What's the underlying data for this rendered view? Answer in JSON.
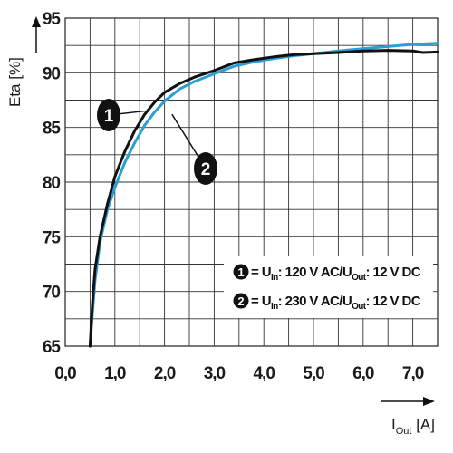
{
  "chart_data": {
    "type": "line",
    "ylabel": "Eta [%]",
    "xlabel": {
      "main": "I",
      "sub": "Out",
      "unit": " [A]"
    },
    "xlim": [
      0,
      7.5
    ],
    "ylim": [
      65,
      95
    ],
    "x_ticks": [
      "0,0",
      "1,0",
      "2,0",
      "3,0",
      "4,0",
      "5,0",
      "6,0",
      "7,0"
    ],
    "y_ticks": [
      "65",
      "70",
      "75",
      "80",
      "85",
      "90",
      "95"
    ],
    "grid": true,
    "legend_placement": "lower-right",
    "series": [
      {
        "id": "1",
        "color": "#111111",
        "points": [
          [
            0.5,
            65
          ],
          [
            0.55,
            69
          ],
          [
            0.6,
            72
          ],
          [
            0.7,
            75
          ],
          [
            0.85,
            78
          ],
          [
            1.0,
            80.5
          ],
          [
            1.2,
            82.8
          ],
          [
            1.4,
            84.7
          ],
          [
            1.6,
            86.2
          ],
          [
            1.8,
            87.3
          ],
          [
            2.0,
            88.2
          ],
          [
            2.3,
            89.0
          ],
          [
            2.6,
            89.6
          ],
          [
            3.0,
            90.2
          ],
          [
            3.4,
            90.9
          ],
          [
            3.8,
            91.2
          ],
          [
            4.2,
            91.45
          ],
          [
            4.6,
            91.65
          ],
          [
            5.0,
            91.75
          ],
          [
            5.5,
            91.85
          ],
          [
            6.0,
            92.0
          ],
          [
            6.5,
            92.05
          ],
          [
            7.0,
            92.0
          ],
          [
            7.2,
            91.85
          ],
          [
            7.5,
            91.9
          ]
        ]
      },
      {
        "id": "2",
        "color": "#2a9fd6",
        "points": [
          [
            0.5,
            65
          ],
          [
            0.55,
            68
          ],
          [
            0.6,
            71
          ],
          [
            0.7,
            74.5
          ],
          [
            0.85,
            77.5
          ],
          [
            1.0,
            79.5
          ],
          [
            1.2,
            81.8
          ],
          [
            1.4,
            83.6
          ],
          [
            1.6,
            85.2
          ],
          [
            1.8,
            86.4
          ],
          [
            2.0,
            87.4
          ],
          [
            2.3,
            88.5
          ],
          [
            2.6,
            89.2
          ],
          [
            3.0,
            89.9
          ],
          [
            3.4,
            90.6
          ],
          [
            3.8,
            91.0
          ],
          [
            4.2,
            91.3
          ],
          [
            4.6,
            91.55
          ],
          [
            5.0,
            91.75
          ],
          [
            5.5,
            92.0
          ],
          [
            6.0,
            92.2
          ],
          [
            6.5,
            92.4
          ],
          [
            7.0,
            92.6
          ],
          [
            7.5,
            92.7
          ]
        ]
      }
    ],
    "legend": [
      {
        "marker": "1",
        "line": [
          "= U",
          "In",
          ": 120 V AC/U",
          "Out",
          ": 12 V DC"
        ]
      },
      {
        "marker": "2",
        "line": [
          "= U",
          "In",
          ": 230 V AC/U",
          "Out",
          ": 12 V DC"
        ]
      }
    ],
    "callouts": [
      {
        "marker": "1",
        "x": 1.6,
        "y": 86.5
      },
      {
        "marker": "2",
        "x": 2.15,
        "y": 86.2
      }
    ]
  }
}
